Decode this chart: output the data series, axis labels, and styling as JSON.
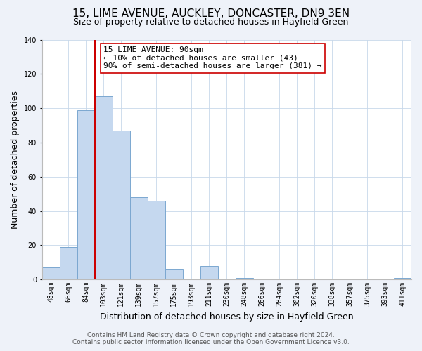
{
  "title": "15, LIME AVENUE, AUCKLEY, DONCASTER, DN9 3EN",
  "subtitle": "Size of property relative to detached houses in Hayfield Green",
  "xlabel": "Distribution of detached houses by size in Hayfield Green",
  "ylabel": "Number of detached properties",
  "bar_labels": [
    "48sqm",
    "66sqm",
    "84sqm",
    "103sqm",
    "121sqm",
    "139sqm",
    "157sqm",
    "175sqm",
    "193sqm",
    "211sqm",
    "230sqm",
    "248sqm",
    "266sqm",
    "284sqm",
    "302sqm",
    "320sqm",
    "338sqm",
    "357sqm",
    "375sqm",
    "393sqm",
    "411sqm"
  ],
  "bar_values": [
    7,
    19,
    99,
    107,
    87,
    48,
    46,
    6,
    0,
    8,
    0,
    1,
    0,
    0,
    0,
    0,
    0,
    0,
    0,
    0,
    1
  ],
  "bar_color": "#c5d8ef",
  "bar_edge_color": "#7ba7d0",
  "vline_color": "#cc0000",
  "ylim": [
    0,
    140
  ],
  "yticks": [
    0,
    20,
    40,
    60,
    80,
    100,
    120,
    140
  ],
  "annotation_title": "15 LIME AVENUE: 90sqm",
  "annotation_line1": "← 10% of detached houses are smaller (43)",
  "annotation_line2": "90% of semi-detached houses are larger (381) →",
  "footnote1": "Contains HM Land Registry data © Crown copyright and database right 2024.",
  "footnote2": "Contains public sector information licensed under the Open Government Licence v3.0.",
  "bg_color": "#eef2f9",
  "plot_bg_color": "#ffffff",
  "title_fontsize": 11,
  "subtitle_fontsize": 9,
  "axis_label_fontsize": 9,
  "tick_fontsize": 7,
  "annotation_fontsize": 8,
  "footnote_fontsize": 6.5
}
